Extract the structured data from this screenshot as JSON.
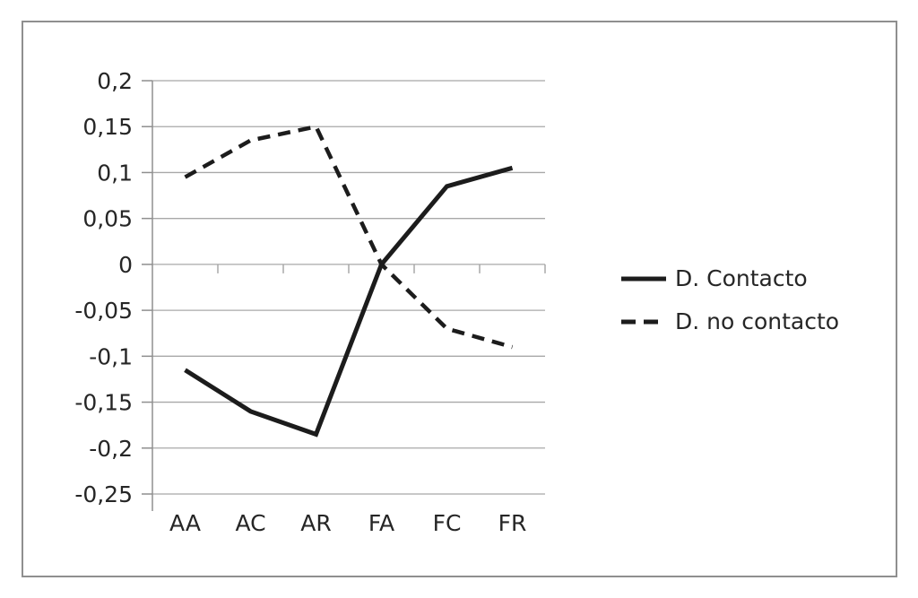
{
  "chart_data": {
    "type": "line",
    "title": "",
    "xlabel": "",
    "ylabel": "",
    "categories": [
      "AA",
      "AC",
      "AR",
      "FA",
      "FC",
      "FR"
    ],
    "series": [
      {
        "name": "D. Contacto",
        "line_style": "solid",
        "values": [
          -0.115,
          -0.16,
          -0.185,
          0.0,
          0.085,
          0.105
        ]
      },
      {
        "name": "D. no contacto",
        "line_style": "dashed",
        "values": [
          0.095,
          0.135,
          0.15,
          0.0,
          -0.07,
          -0.09
        ]
      }
    ],
    "ylim": [
      -0.25,
      0.2
    ],
    "ytick_step": 0.05,
    "ytick_labels": [
      "0,2",
      "0,15",
      "0,1",
      "0,05",
      "0",
      "-0,05",
      "-0,1",
      "-0,15",
      "-0,2",
      "-0,25"
    ],
    "decimal_separator": ",",
    "grid": true,
    "legend_position": "right",
    "colors": {
      "series_line": "#1c1c1c",
      "gridline": "#a8a8a8",
      "axis": "#8f8f8f",
      "text": "#262626",
      "background": "#ffffff",
      "frame_border": "#8f8f8f"
    }
  }
}
